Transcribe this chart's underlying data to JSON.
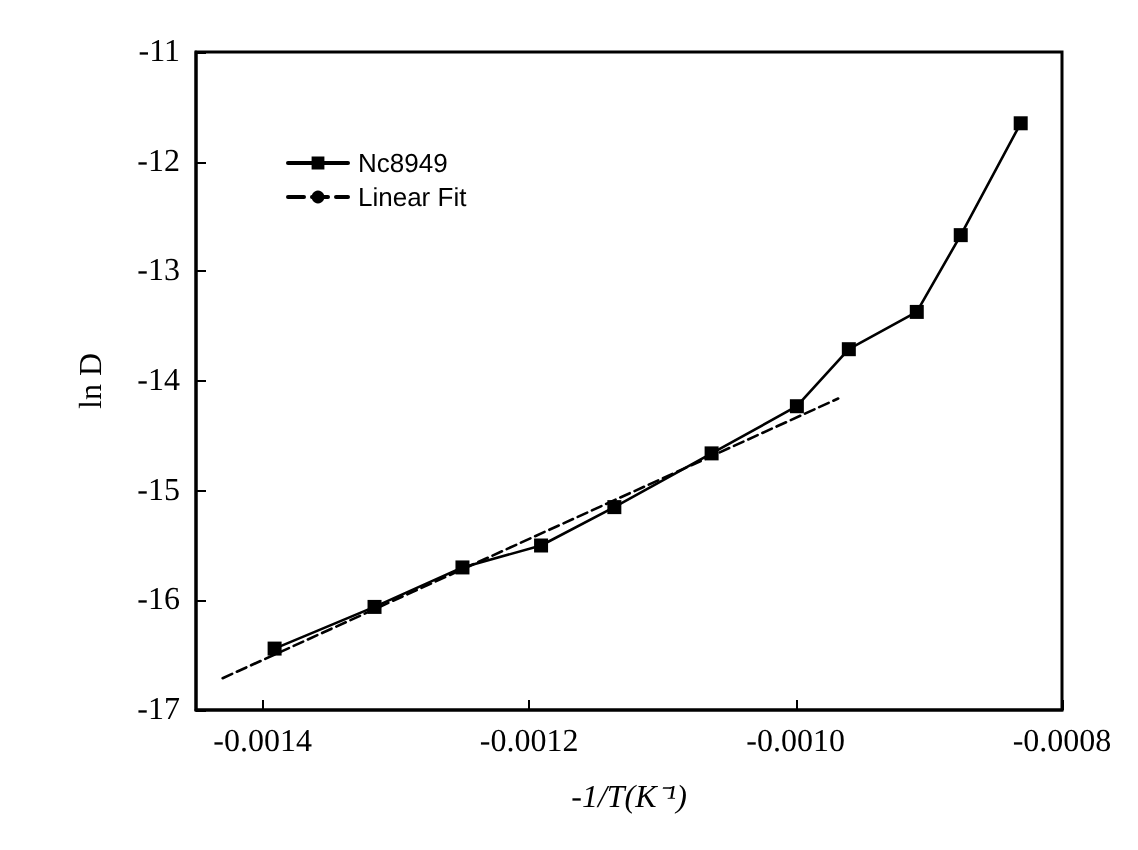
{
  "chart_data": {
    "type": "line",
    "xlabel": "-1/T(K⁻¹)",
    "ylabel": "ln D",
    "xlim": [
      -0.00145,
      -0.0008
    ],
    "xticks": [
      -0.0014,
      -0.0012,
      {
        "value": -0.001,
        "label": "-0.0010"
      },
      -0.0008
    ],
    "ylim": [
      -17,
      -11
    ],
    "yticks": [
      -17,
      -16,
      -15,
      -14,
      -13,
      -12,
      -11
    ],
    "grid": false,
    "legend": "top left",
    "series": [
      {
        "name": "Nc8949",
        "color": "#000000",
        "marker": "square",
        "line_style": "solid",
        "x": [
          -0.001391,
          -0.001316,
          -0.00125,
          -0.001191,
          -0.001136,
          -0.001063,
          -0.000999,
          -0.00096,
          -0.000909,
          -0.000876,
          -0.000831
        ],
        "values": [
          -16.44,
          -16.06,
          -15.7,
          -15.5,
          -15.15,
          -14.66,
          -14.23,
          -13.71,
          -13.37,
          -12.67,
          -11.65
        ]
      },
      {
        "name": "Linear Fit",
        "color": "#000000",
        "marker": "none",
        "line_style": "dashed",
        "x": [
          -0.00143,
          -0.000968
        ],
        "values": [
          -16.71,
          -14.16
        ]
      }
    ]
  }
}
